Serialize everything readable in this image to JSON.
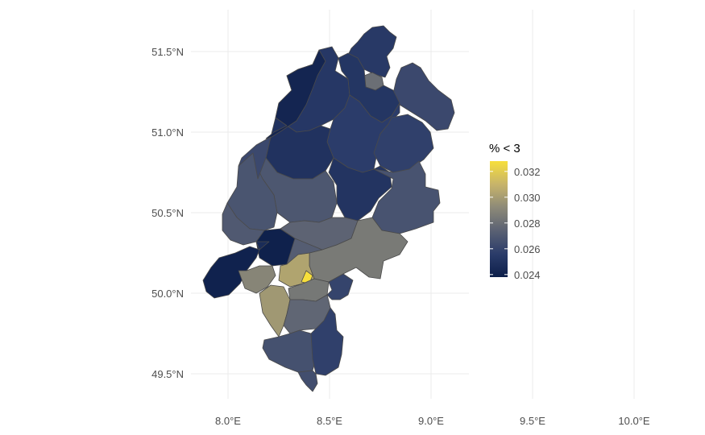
{
  "chart_data": {
    "type": "heatmap",
    "subtype": "choropleth-map",
    "region": "Hesse (Germany) districts",
    "x_axis": {
      "ticks": [
        "8.0°E",
        "8.5°E",
        "9.0°E",
        "9.5°E",
        "10.0°E"
      ],
      "values": [
        8.0,
        8.5,
        9.0,
        9.5,
        10.0
      ],
      "range": [
        7.8,
        10.2
      ]
    },
    "y_axis": {
      "ticks": [
        "49.5°N",
        "50.0°N",
        "50.5°N",
        "51.0°N",
        "51.5°N"
      ],
      "values": [
        49.5,
        50.0,
        50.5,
        51.0,
        51.5
      ],
      "range": [
        49.4,
        51.65
      ]
    },
    "grid": true,
    "legend": {
      "title": "% < 3",
      "position": "right",
      "ticks": [
        "0.024",
        "0.026",
        "0.028",
        "0.030",
        "0.032"
      ],
      "values": [
        0.024,
        0.026,
        0.028,
        0.03,
        0.032
      ],
      "range": [
        0.0238,
        0.0328
      ],
      "colorscale": [
        "#0d1f4a",
        "#2b3c6a",
        "#5a6173",
        "#8d8a78",
        "#c7b46a",
        "#f7df3b"
      ]
    },
    "districts": [
      {
        "value": 0.0254
      },
      {
        "value": 0.0262
      },
      {
        "value": 0.028
      },
      {
        "value": 0.0239
      },
      {
        "value": 0.0253
      },
      {
        "value": 0.0252
      },
      {
        "value": 0.0256
      },
      {
        "value": 0.025
      },
      {
        "value": 0.0258
      },
      {
        "value": 0.0251
      },
      {
        "value": 0.0267
      },
      {
        "value": 0.0269
      },
      {
        "value": 0.0275
      },
      {
        "value": 0.0268
      },
      {
        "value": 0.027
      },
      {
        "value": 0.024
      },
      {
        "value": 0.0242
      },
      {
        "value": 0.0285
      },
      {
        "value": 0.029
      },
      {
        "value": 0.0298
      },
      {
        "value": 0.0303
      },
      {
        "value": 0.0328
      },
      {
        "value": 0.0284
      },
      {
        "value": 0.0276
      },
      {
        "value": 0.0266
      },
      {
        "value": 0.0258
      },
      {
        "value": 0.0265
      },
      {
        "value": 0.026
      },
      {
        "value": 0.0246
      },
      {
        "value": 0.0272
      },
      {
        "value": 0.0262
      }
    ]
  }
}
